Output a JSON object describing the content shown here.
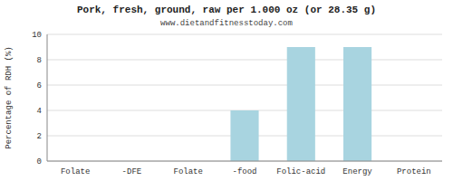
{
  "chart_data": {
    "type": "bar",
    "title": "Pork, fresh, ground, raw per 1.000 oz (or 28.35 g)",
    "subtitle": "www.dietandfitnesstoday.com",
    "categories": [
      "Folate",
      "-DFE",
      "Folate",
      "-food",
      "Folic-acid",
      "Energy",
      "Protein"
    ],
    "values": [
      0,
      0,
      0,
      4.0,
      9.0,
      9.0,
      0
    ],
    "color": "#a8d4e0",
    "ylabel": "Percentage of RDH (%)",
    "ylim": [
      0,
      10
    ],
    "yticks": [
      0,
      2,
      4,
      6,
      8,
      10
    ],
    "grid": true
  }
}
